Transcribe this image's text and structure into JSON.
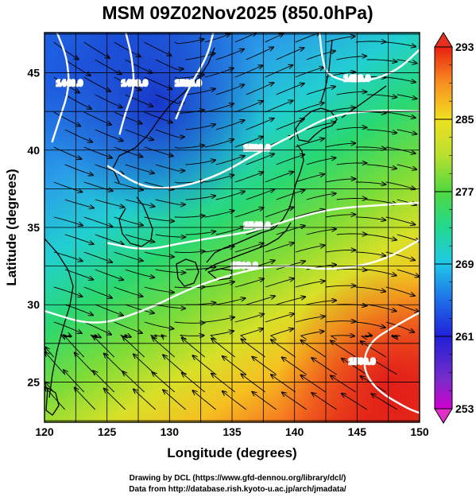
{
  "title": "MSM 09Z02Nov2025 (850.0hPa)",
  "x_axis": {
    "label": "Longitude (degrees)",
    "ticks": [
      120,
      125,
      130,
      135,
      140,
      145,
      150
    ],
    "range": [
      120,
      150
    ]
  },
  "y_axis": {
    "label": "Latitude  (degrees)",
    "ticks": [
      25,
      30,
      35,
      40,
      45
    ],
    "range": [
      22.4,
      47.6
    ]
  },
  "colorbar": {
    "ticks": [
      253,
      261,
      269,
      277,
      285,
      293
    ],
    "range": [
      253,
      293
    ],
    "colors": [
      "#e000e0",
      "#7a2cc8",
      "#2020d8",
      "#1e6ee8",
      "#20c8e8",
      "#22d890",
      "#2ed050",
      "#a8e030",
      "#f0e020",
      "#f8a020",
      "#f05020",
      "#e82010"
    ]
  },
  "contours": [
    {
      "label": "1440.0",
      "points": [
        [
          121,
          47.6
        ],
        [
          121.8,
          46
        ],
        [
          122,
          44
        ],
        [
          121.2,
          42
        ],
        [
          120.6,
          40.5
        ]
      ]
    },
    {
      "label": "1480.0",
      "points": [
        [
          126.5,
          47.6
        ],
        [
          127,
          46
        ],
        [
          127.2,
          44
        ],
        [
          126.5,
          42.5
        ],
        [
          126,
          41
        ]
      ]
    },
    {
      "label": "1520.0",
      "points": [
        [
          133.5,
          47.6
        ],
        [
          133,
          46
        ],
        [
          131.5,
          44
        ],
        [
          130.5,
          42
        ]
      ]
    },
    {
      "label": "1480.0",
      "points": [
        [
          142,
          47.6
        ],
        [
          142.2,
          46
        ],
        [
          142.6,
          44.8
        ],
        [
          145,
          44.3
        ],
        [
          148,
          45
        ],
        [
          150,
          46.5
        ]
      ]
    },
    {
      "label": "1520.0",
      "points": [
        [
          125,
          39
        ],
        [
          128,
          37.5
        ],
        [
          131,
          37.6
        ],
        [
          134,
          38.4
        ],
        [
          137,
          39.8
        ],
        [
          140,
          41
        ],
        [
          143,
          42.3
        ],
        [
          147,
          42.6
        ],
        [
          150,
          42.5
        ]
      ]
    },
    {
      "label": "1540.0",
      "points": [
        [
          125,
          34
        ],
        [
          128,
          33.5
        ],
        [
          131,
          34
        ],
        [
          134,
          34.4
        ],
        [
          137,
          34.8
        ],
        [
          140,
          35.6
        ],
        [
          143,
          36.2
        ],
        [
          146,
          36.4
        ],
        [
          150,
          36.6
        ]
      ]
    },
    {
      "label": "1560.0",
      "points": [
        [
          120,
          29.6
        ],
        [
          124,
          28.6
        ],
        [
          128,
          29.6
        ],
        [
          132,
          31.2
        ],
        [
          136,
          32.2
        ],
        [
          139,
          32.6
        ],
        [
          143,
          32.2
        ],
        [
          147,
          32.8
        ],
        [
          150,
          34.2
        ]
      ]
    },
    {
      "label": "1560.0",
      "points": [
        [
          150,
          29.5
        ],
        [
          148,
          28.6
        ],
        [
          146,
          27.6
        ],
        [
          145.4,
          26
        ],
        [
          146.5,
          24.5
        ],
        [
          149,
          23.3
        ],
        [
          150,
          23
        ]
      ]
    }
  ],
  "streamline_note": "",
  "credits": [
    "Drawing by DCL (https://www.gfd-dennou.org/library/dcl/)",
    "Data from http://database.rish.kyoto-u.ac.jp/arch/jmadata/"
  ]
}
